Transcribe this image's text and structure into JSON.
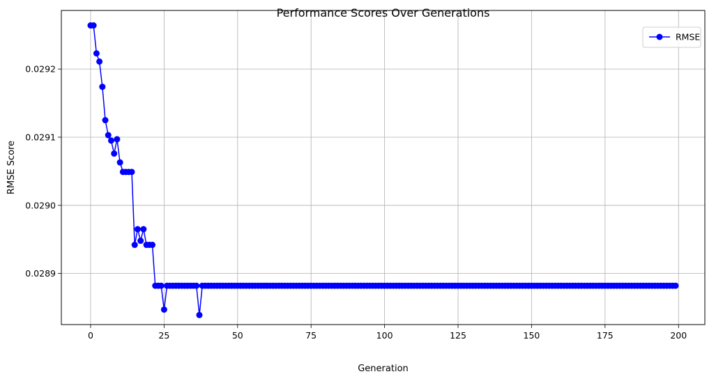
{
  "chart_data": {
    "type": "line",
    "title": "Performance Scores Over Generations",
    "xlabel": "Generation",
    "ylabel": "RMSE Score",
    "xlim": [
      -9.95,
      208.95
    ],
    "ylim": [
      0.028825,
      0.029286
    ],
    "x_ticks": [
      0,
      25,
      50,
      75,
      100,
      125,
      150,
      175,
      200
    ],
    "y_ticks": [
      0.0289,
      0.029,
      0.0291,
      0.0292
    ],
    "y_tick_labels": [
      "0.0289",
      "0.0290",
      "0.0291",
      "0.0292"
    ],
    "grid": true,
    "legend_position": "top-right",
    "colors": {
      "series": "#0000ff",
      "grid": "#b0b0b0"
    },
    "series": [
      {
        "name": "RMSE",
        "marker": "circle",
        "x_start": 0,
        "x_step": 1,
        "values": [
          0.029264,
          0.029264,
          0.029223,
          0.029211,
          0.029174,
          0.029125,
          0.029103,
          0.029095,
          0.029076,
          0.029097,
          0.029063,
          0.029049,
          0.029049,
          0.029049,
          0.029049,
          0.028942,
          0.028965,
          0.028948,
          0.028965,
          0.028942,
          0.028942,
          0.028942,
          0.028882,
          0.028882,
          0.028882,
          0.028847,
          0.028882,
          0.028882,
          0.028882,
          0.028882,
          0.028882,
          0.028882,
          0.028882,
          0.028882,
          0.028882,
          0.028882,
          0.028882,
          0.028839,
          0.028882,
          0.028882,
          0.028882,
          0.028882,
          0.028882,
          0.028882,
          0.028882,
          0.028882,
          0.028882,
          0.028882,
          0.028882,
          0.028882,
          0.028882,
          0.028882,
          0.028882,
          0.028882,
          0.028882,
          0.028882,
          0.028882,
          0.028882,
          0.028882,
          0.028882,
          0.028882,
          0.028882,
          0.028882,
          0.028882,
          0.028882,
          0.028882,
          0.028882,
          0.028882,
          0.028882,
          0.028882,
          0.028882,
          0.028882,
          0.028882,
          0.028882,
          0.028882,
          0.028882,
          0.028882,
          0.028882,
          0.028882,
          0.028882,
          0.028882,
          0.028882,
          0.028882,
          0.028882,
          0.028882,
          0.028882,
          0.028882,
          0.028882,
          0.028882,
          0.028882,
          0.028882,
          0.028882,
          0.028882,
          0.028882,
          0.028882,
          0.028882,
          0.028882,
          0.028882,
          0.028882,
          0.028882,
          0.028882,
          0.028882,
          0.028882,
          0.028882,
          0.028882,
          0.028882,
          0.028882,
          0.028882,
          0.028882,
          0.028882,
          0.028882,
          0.028882,
          0.028882,
          0.028882,
          0.028882,
          0.028882,
          0.028882,
          0.028882,
          0.028882,
          0.028882,
          0.028882,
          0.028882,
          0.028882,
          0.028882,
          0.028882,
          0.028882,
          0.028882,
          0.028882,
          0.028882,
          0.028882,
          0.028882,
          0.028882,
          0.028882,
          0.028882,
          0.028882,
          0.028882,
          0.028882,
          0.028882,
          0.028882,
          0.028882,
          0.028882,
          0.028882,
          0.028882,
          0.028882,
          0.028882,
          0.028882,
          0.028882,
          0.028882,
          0.028882,
          0.028882,
          0.028882,
          0.028882,
          0.028882,
          0.028882,
          0.028882,
          0.028882,
          0.028882,
          0.028882,
          0.028882,
          0.028882,
          0.028882,
          0.028882,
          0.028882,
          0.028882,
          0.028882,
          0.028882,
          0.028882,
          0.028882,
          0.028882,
          0.028882,
          0.028882,
          0.028882,
          0.028882,
          0.028882,
          0.028882,
          0.028882,
          0.028882,
          0.028882,
          0.028882,
          0.028882,
          0.028882,
          0.028882,
          0.028882,
          0.028882,
          0.028882,
          0.028882,
          0.028882,
          0.028882,
          0.028882,
          0.028882,
          0.028882,
          0.028882,
          0.028882,
          0.028882,
          0.028882,
          0.028882,
          0.028882,
          0.028882,
          0.028882,
          0.028882
        ]
      }
    ]
  }
}
